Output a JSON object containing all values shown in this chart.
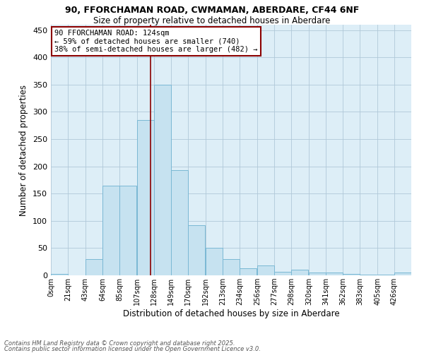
{
  "title_line1": "90, FFORCHAMAN ROAD, CWMAMAN, ABERDARE, CF44 6NF",
  "title_line2": "Size of property relative to detached houses in Aberdare",
  "xlabel": "Distribution of detached houses by size in Aberdare",
  "ylabel": "Number of detached properties",
  "bin_labels": [
    "0sqm",
    "21sqm",
    "43sqm",
    "64sqm",
    "85sqm",
    "107sqm",
    "128sqm",
    "149sqm",
    "170sqm",
    "192sqm",
    "213sqm",
    "234sqm",
    "256sqm",
    "277sqm",
    "298sqm",
    "320sqm",
    "341sqm",
    "362sqm",
    "383sqm",
    "405sqm",
    "426sqm"
  ],
  "bar_heights": [
    2,
    0,
    30,
    165,
    165,
    285,
    350,
    193,
    92,
    50,
    30,
    13,
    18,
    7,
    10,
    5,
    5,
    2,
    1,
    1,
    5
  ],
  "bar_color": "#c6e2f0",
  "bar_edge_color": "#7ab8d4",
  "grid_color": "#b0c8d8",
  "bg_color": "#ddeef7",
  "red_line_x": 124,
  "bin_starts": [
    0,
    21,
    43,
    64,
    85,
    107,
    128,
    149,
    170,
    192,
    213,
    234,
    256,
    277,
    298,
    320,
    341,
    362,
    383,
    405,
    426
  ],
  "bin_width": 21,
  "annotation_text": "90 FFORCHAMAN ROAD: 124sqm\n← 59% of detached houses are smaller (740)\n38% of semi-detached houses are larger (482) →",
  "annotation_box_color": "white",
  "annotation_box_edge": "#8b0000",
  "ylim": [
    0,
    460
  ],
  "yticks": [
    0,
    50,
    100,
    150,
    200,
    250,
    300,
    350,
    400,
    450
  ],
  "footer1": "Contains HM Land Registry data © Crown copyright and database right 2025.",
  "footer2": "Contains public sector information licensed under the Open Government Licence v3.0."
}
